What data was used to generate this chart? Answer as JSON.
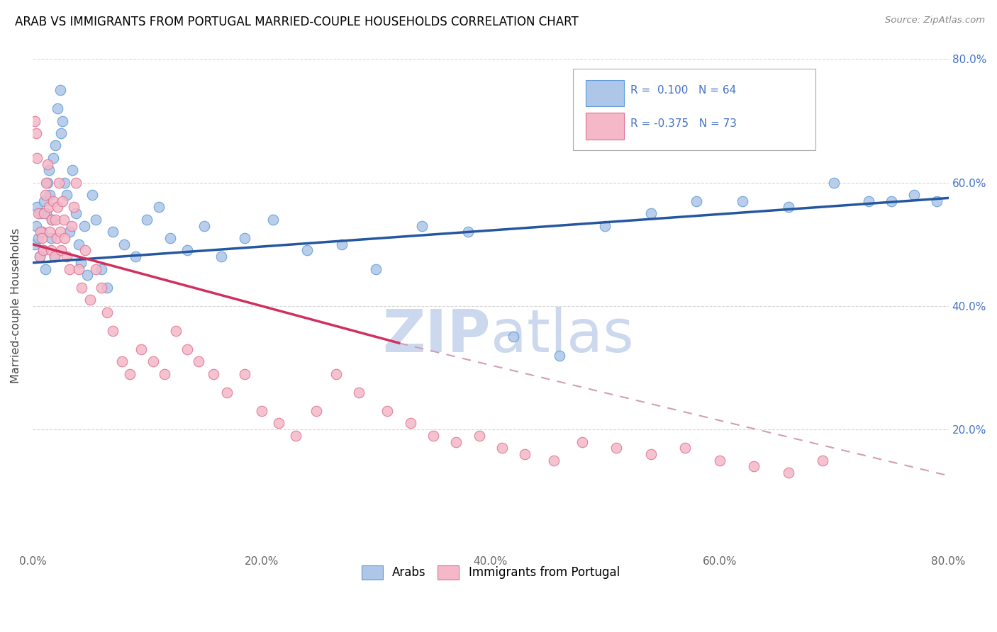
{
  "title": "ARAB VS IMMIGRANTS FROM PORTUGAL MARRIED-COUPLE HOUSEHOLDS CORRELATION CHART",
  "source": "Source: ZipAtlas.com",
  "ylabel": "Married-couple Households",
  "xlim": [
    0,
    0.8
  ],
  "ylim": [
    0,
    0.8
  ],
  "xticks": [
    0.0,
    0.2,
    0.4,
    0.6,
    0.8
  ],
  "yticks": [
    0.2,
    0.4,
    0.6,
    0.8
  ],
  "series1_label": "Arabs",
  "series1_color": "#aec6e8",
  "series1_edge_color": "#5b9bd5",
  "series1_R": "0.100",
  "series1_N": "64",
  "series2_label": "Immigrants from Portugal",
  "series2_color": "#f4b8c8",
  "series2_edge_color": "#e07090",
  "series2_R": "-0.375",
  "series2_N": "73",
  "trend1_color": "#2457a0",
  "trend1_x0": 0.0,
  "trend1_y0": 0.47,
  "trend1_x1": 0.8,
  "trend1_y1": 0.575,
  "trend2_color": "#d03060",
  "trend2_x0": 0.0,
  "trend2_y0": 0.5,
  "trend2_solid_x1": 0.32,
  "trend2_solid_y1": 0.34,
  "trend2_dash_x1": 0.8,
  "trend2_dash_y1": 0.125,
  "trend2_dash_color": "#d0a0b0",
  "watermark_zip": "ZIP",
  "watermark_atlas": "atlas",
  "watermark_color": "#ccd8ee",
  "grid_color": "#cccccc",
  "title_fontsize": 12,
  "axis_label_color": "#4472c4",
  "legend_R_color": "#4472c4",
  "series1_x": [
    0.002,
    0.003,
    0.004,
    0.005,
    0.006,
    0.007,
    0.008,
    0.009,
    0.01,
    0.011,
    0.012,
    0.013,
    0.014,
    0.015,
    0.016,
    0.017,
    0.018,
    0.019,
    0.02,
    0.022,
    0.024,
    0.025,
    0.026,
    0.028,
    0.03,
    0.032,
    0.035,
    0.038,
    0.04,
    0.042,
    0.045,
    0.048,
    0.052,
    0.055,
    0.06,
    0.065,
    0.07,
    0.08,
    0.09,
    0.1,
    0.11,
    0.12,
    0.135,
    0.15,
    0.165,
    0.185,
    0.21,
    0.24,
    0.27,
    0.3,
    0.34,
    0.38,
    0.42,
    0.46,
    0.5,
    0.54,
    0.58,
    0.62,
    0.66,
    0.7,
    0.73,
    0.75,
    0.77,
    0.79
  ],
  "series1_y": [
    0.5,
    0.53,
    0.56,
    0.51,
    0.48,
    0.55,
    0.52,
    0.49,
    0.57,
    0.46,
    0.55,
    0.6,
    0.62,
    0.58,
    0.51,
    0.54,
    0.64,
    0.48,
    0.66,
    0.72,
    0.75,
    0.68,
    0.7,
    0.6,
    0.58,
    0.52,
    0.62,
    0.55,
    0.5,
    0.47,
    0.53,
    0.45,
    0.58,
    0.54,
    0.46,
    0.43,
    0.52,
    0.5,
    0.48,
    0.54,
    0.56,
    0.51,
    0.49,
    0.53,
    0.48,
    0.51,
    0.54,
    0.49,
    0.5,
    0.46,
    0.53,
    0.52,
    0.35,
    0.32,
    0.53,
    0.55,
    0.57,
    0.57,
    0.56,
    0.6,
    0.57,
    0.57,
    0.58,
    0.57
  ],
  "series2_x": [
    0.002,
    0.003,
    0.004,
    0.005,
    0.006,
    0.007,
    0.008,
    0.009,
    0.01,
    0.011,
    0.012,
    0.013,
    0.014,
    0.015,
    0.016,
    0.017,
    0.018,
    0.019,
    0.02,
    0.021,
    0.022,
    0.023,
    0.024,
    0.025,
    0.026,
    0.027,
    0.028,
    0.03,
    0.032,
    0.034,
    0.036,
    0.038,
    0.04,
    0.043,
    0.046,
    0.05,
    0.055,
    0.06,
    0.065,
    0.07,
    0.078,
    0.085,
    0.095,
    0.105,
    0.115,
    0.125,
    0.135,
    0.145,
    0.158,
    0.17,
    0.185,
    0.2,
    0.215,
    0.23,
    0.248,
    0.265,
    0.285,
    0.31,
    0.33,
    0.35,
    0.37,
    0.39,
    0.41,
    0.43,
    0.455,
    0.48,
    0.51,
    0.54,
    0.57,
    0.6,
    0.63,
    0.66,
    0.69
  ],
  "series2_y": [
    0.7,
    0.68,
    0.64,
    0.55,
    0.48,
    0.52,
    0.51,
    0.49,
    0.55,
    0.58,
    0.6,
    0.63,
    0.56,
    0.52,
    0.49,
    0.54,
    0.57,
    0.48,
    0.54,
    0.51,
    0.56,
    0.6,
    0.52,
    0.49,
    0.57,
    0.54,
    0.51,
    0.48,
    0.46,
    0.53,
    0.56,
    0.6,
    0.46,
    0.43,
    0.49,
    0.41,
    0.46,
    0.43,
    0.39,
    0.36,
    0.31,
    0.29,
    0.33,
    0.31,
    0.29,
    0.36,
    0.33,
    0.31,
    0.29,
    0.26,
    0.29,
    0.23,
    0.21,
    0.19,
    0.23,
    0.29,
    0.26,
    0.23,
    0.21,
    0.19,
    0.18,
    0.19,
    0.17,
    0.16,
    0.15,
    0.18,
    0.17,
    0.16,
    0.17,
    0.15,
    0.14,
    0.13,
    0.15
  ]
}
